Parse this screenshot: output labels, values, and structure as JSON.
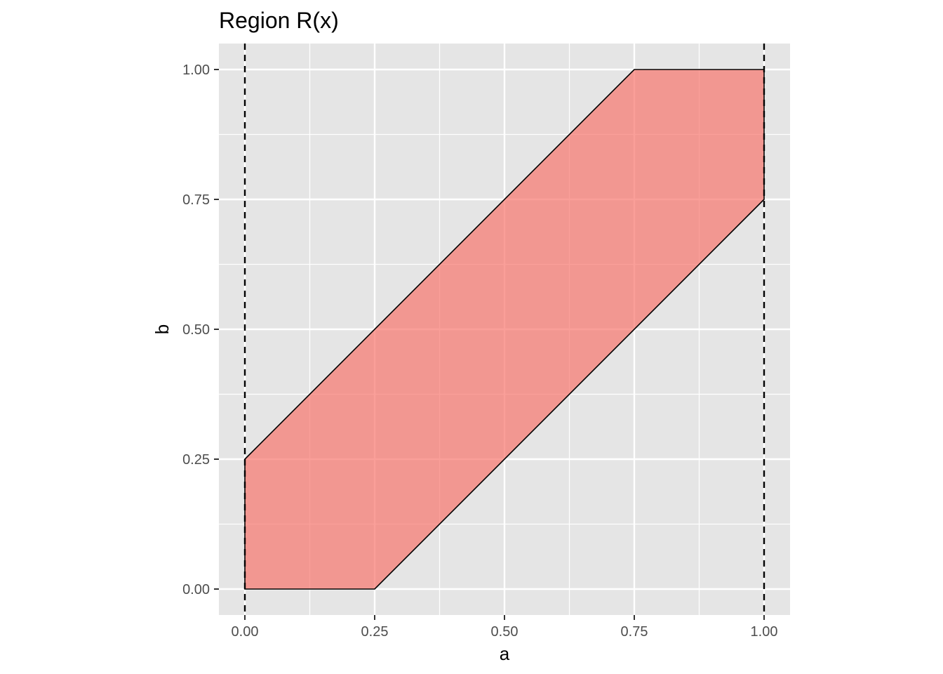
{
  "chart_data": {
    "type": "area",
    "title": "Region R(x)",
    "xlabel": "a",
    "ylabel": "b",
    "xlim": [
      -0.05,
      1.05
    ],
    "ylim": [
      -0.05,
      1.05
    ],
    "x_ticks": [
      0,
      0.25,
      0.5,
      0.75,
      1
    ],
    "x_tick_labels": [
      "0.00",
      "0.25",
      "0.50",
      "0.75",
      "1.00"
    ],
    "y_ticks": [
      0,
      0.25,
      0.5,
      0.75,
      1
    ],
    "y_tick_labels": [
      "0.00",
      "0.25",
      "0.50",
      "0.75",
      "1.00"
    ],
    "x_minor_ticks": [
      0.125,
      0.375,
      0.625,
      0.875
    ],
    "y_minor_ticks": [
      0.125,
      0.375,
      0.625,
      0.875
    ],
    "grid": true,
    "region": {
      "vertices": [
        {
          "a": 0,
          "b": 0
        },
        {
          "a": 0.25,
          "b": 0
        },
        {
          "a": 1,
          "b": 0.75
        },
        {
          "a": 1,
          "b": 1
        },
        {
          "a": 0.75,
          "b": 1
        },
        {
          "a": 0,
          "b": 0.25
        }
      ],
      "fill": "#f8766d",
      "fill_opacity": 0.7,
      "outline_color": "#000000"
    },
    "vertical_lines": [
      {
        "a": 0,
        "style": "dashed",
        "color": "#000000"
      },
      {
        "a": 1,
        "style": "dashed",
        "color": "#000000"
      }
    ],
    "panel_background": "#e5e5e5",
    "grid_color": "#ffffff"
  }
}
